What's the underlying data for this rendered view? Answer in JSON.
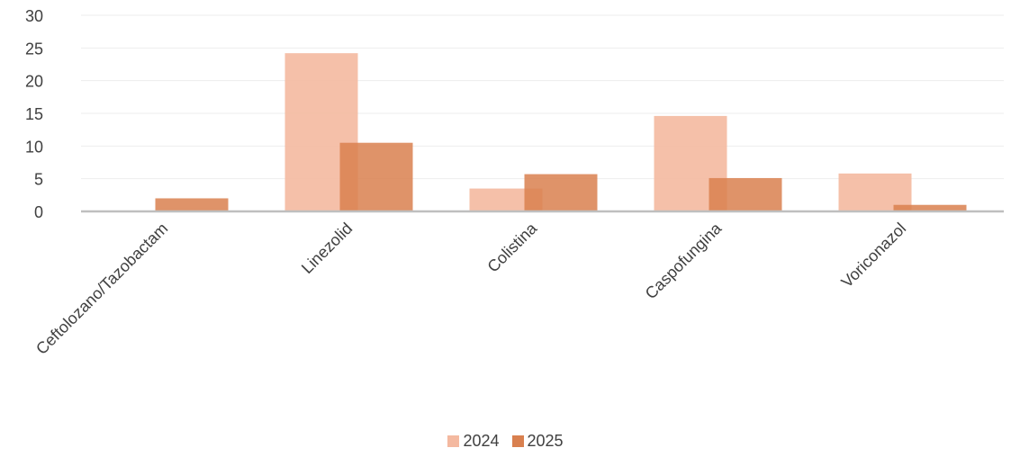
{
  "chart_data": {
    "type": "bar",
    "title": "",
    "xlabel": "",
    "ylabel": "",
    "categories": [
      "Ceftolozano/Tazobactam",
      "Linezolid",
      "Colistina",
      "Caspofungina",
      "Voriconazol"
    ],
    "series": [
      {
        "name": "2024",
        "values": [
          0,
          24.2,
          3.5,
          14.6,
          5.8
        ],
        "color": "#F4B9A0"
      },
      {
        "name": "2025",
        "values": [
          2.0,
          10.5,
          5.7,
          5.1,
          1.0
        ],
        "color": "#D9804F"
      }
    ],
    "ylim": [
      0,
      30
    ],
    "yticks": [
      0,
      5,
      10,
      15,
      20,
      25,
      30
    ],
    "grid": true,
    "legend": "bottom",
    "colors": {
      "grid": "#EDEDED",
      "axis": "#BFBFBF",
      "text": "#404040"
    }
  }
}
